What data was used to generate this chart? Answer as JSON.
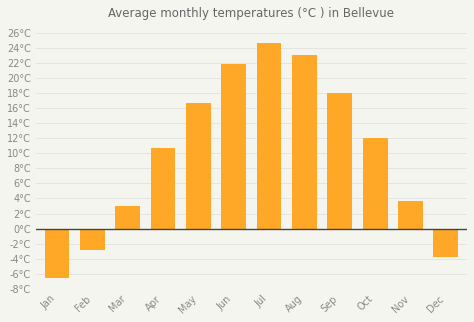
{
  "title": "Average monthly temperatures (°C ) in Bellevue",
  "months": [
    "Jan",
    "Feb",
    "Mar",
    "Apr",
    "May",
    "Jun",
    "Jul",
    "Aug",
    "Sep",
    "Oct",
    "Nov",
    "Dec"
  ],
  "values": [
    -6.5,
    -2.8,
    3.0,
    10.7,
    16.7,
    21.8,
    24.7,
    23.0,
    18.0,
    12.0,
    3.7,
    -3.8
  ],
  "bar_color": "#FFA726",
  "bar_edge_color": "#FFA726",
  "zero_line_color": "#444444",
  "background_color": "#f5f5f0",
  "plot_bg_color": "#f5f5f0",
  "grid_color": "#dddddd",
  "ylim": [
    -8,
    27
  ],
  "yticks": [
    -8,
    -6,
    -4,
    -2,
    0,
    2,
    4,
    6,
    8,
    10,
    12,
    14,
    16,
    18,
    20,
    22,
    24,
    26
  ],
  "title_fontsize": 8.5,
  "tick_fontsize": 7,
  "tick_color": "#888888",
  "title_color": "#666666"
}
